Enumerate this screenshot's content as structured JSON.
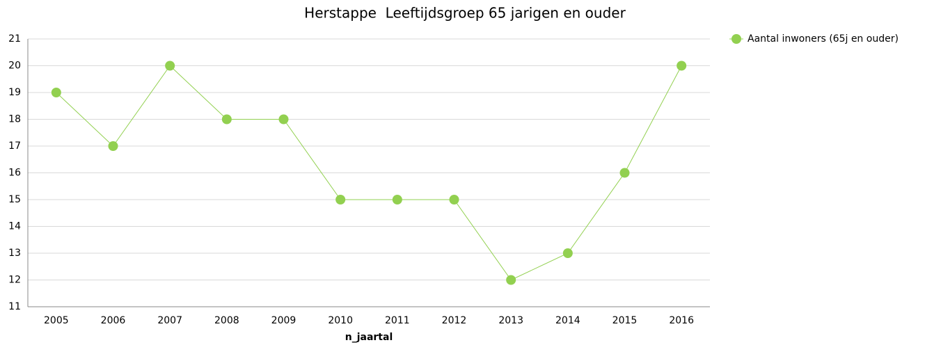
{
  "chart_data": {
    "type": "line",
    "title": "Herstappe  Leeftijdsgroep 65 jarigen en ouder",
    "x_label": "n_jaartal",
    "categories": [
      "2005",
      "2006",
      "2007",
      "2008",
      "2009",
      "2010",
      "2011",
      "2012",
      "2013",
      "2014",
      "2015",
      "2016"
    ],
    "series": [
      {
        "name": "Aantal inwoners (65j en ouder)",
        "color": "#92d050",
        "values": [
          19,
          17,
          20,
          18,
          18,
          15,
          15,
          15,
          12,
          13,
          16,
          20
        ]
      }
    ],
    "ylim": [
      11,
      21
    ],
    "yticks": [
      11,
      12,
      13,
      14,
      15,
      16,
      17,
      18,
      19,
      20,
      21
    ],
    "grid": true,
    "legend": "top-right"
  }
}
